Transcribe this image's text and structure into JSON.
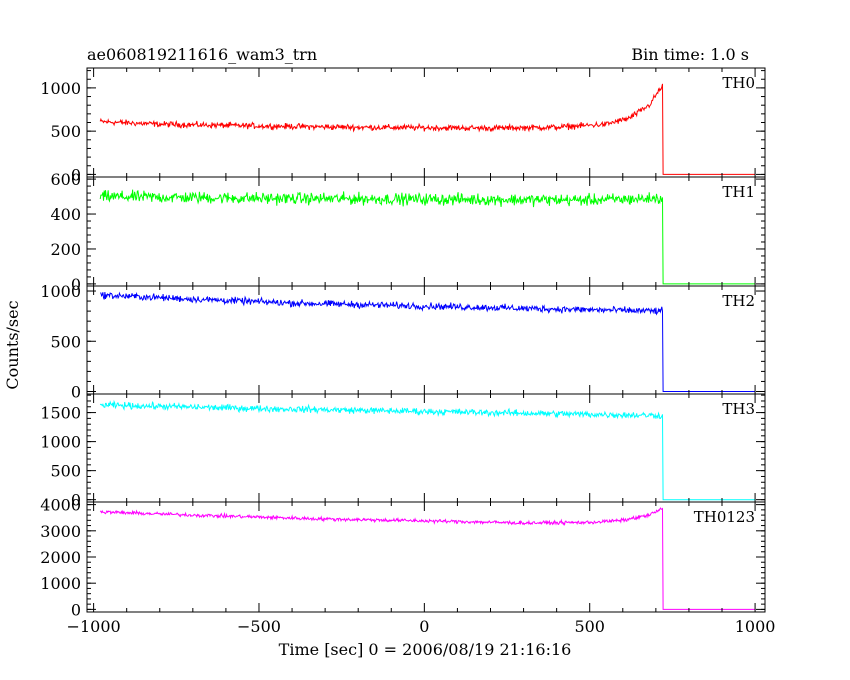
{
  "chart_data": {
    "type": "line",
    "title": "ae060819211616_wam3_trn",
    "bin_time_label": "Bin time: 1.0 s",
    "xlabel": "Time [sec] 0 = 2006/08/19 21:16:16",
    "ylabel": "Counts/sec",
    "xlim": [
      -1020,
      1030
    ],
    "x_ticks": [
      -1000,
      -500,
      0,
      500,
      1000
    ],
    "x_tick_labels": [
      "−1000",
      "−500",
      "0",
      "500",
      "1000"
    ],
    "grid": false,
    "panels": [
      {
        "name": "TH0",
        "color": "#ff0000",
        "ylim": [
          -30,
          1230
        ],
        "y_ticks": [
          0,
          500,
          1000
        ],
        "series": {
          "x_start": -980,
          "x_end": 720,
          "drop_x": 722,
          "end_x": 1000,
          "after_level": 0,
          "trend": [
            [
              -980,
              610
            ],
            [
              -800,
              580
            ],
            [
              -500,
              560
            ],
            [
              -200,
              545
            ],
            [
              0,
              540
            ],
            [
              200,
              535
            ],
            [
              400,
              545
            ],
            [
              550,
              580
            ],
            [
              620,
              650
            ],
            [
              680,
              800
            ],
            [
              710,
              970
            ],
            [
              720,
              1020
            ]
          ],
          "noise": 30
        }
      },
      {
        "name": "TH1",
        "color": "#00ff00",
        "ylim": [
          -12,
          612
        ],
        "y_ticks": [
          0,
          200,
          400,
          600
        ],
        "series": {
          "x_start": -980,
          "x_end": 720,
          "drop_x": 722,
          "end_x": 1000,
          "after_level": 0,
          "trend": [
            [
              -980,
              500
            ],
            [
              -500,
              490
            ],
            [
              0,
              485
            ],
            [
              500,
              480
            ],
            [
              720,
              490
            ]
          ],
          "noise": 30
        }
      },
      {
        "name": "TH2",
        "color": "#0000ff",
        "ylim": [
          -25,
          1050
        ],
        "y_ticks": [
          0,
          500,
          1000
        ],
        "series": {
          "x_start": -980,
          "x_end": 720,
          "drop_x": 722,
          "end_x": 1000,
          "after_level": 0,
          "trend": [
            [
              -980,
              960
            ],
            [
              -700,
              920
            ],
            [
              -400,
              880
            ],
            [
              0,
              850
            ],
            [
              400,
              820
            ],
            [
              720,
              800
            ]
          ],
          "noise": 30
        }
      },
      {
        "name": "TH3",
        "color": "#00ffff",
        "ylim": [
          -40,
          1820
        ],
        "y_ticks": [
          0,
          500,
          1000,
          1500
        ],
        "series": {
          "x_start": -980,
          "x_end": 720,
          "drop_x": 722,
          "end_x": 1000,
          "after_level": 0,
          "trend": [
            [
              -980,
              1630
            ],
            [
              -500,
              1570
            ],
            [
              0,
              1520
            ],
            [
              500,
              1470
            ],
            [
              720,
              1450
            ]
          ],
          "noise": 50
        }
      },
      {
        "name": "TH0123",
        "color": "#ff00ff",
        "ylim": [
          -100,
          4100
        ],
        "y_ticks": [
          0,
          1000,
          2000,
          3000,
          4000
        ],
        "series": {
          "x_start": -980,
          "x_end": 720,
          "drop_x": 722,
          "end_x": 1000,
          "after_level": 0,
          "trend": [
            [
              -980,
              3720
            ],
            [
              -700,
              3600
            ],
            [
              -300,
              3450
            ],
            [
              0,
              3380
            ],
            [
              300,
              3300
            ],
            [
              500,
              3320
            ],
            [
              600,
              3400
            ],
            [
              680,
              3600
            ],
            [
              720,
              3850
            ]
          ],
          "noise": 60
        }
      }
    ]
  }
}
